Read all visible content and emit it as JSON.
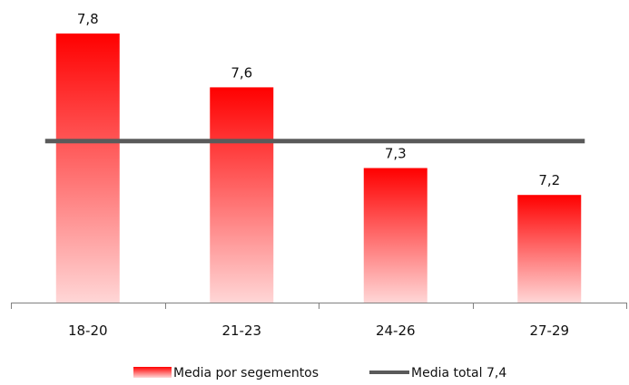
{
  "chart_data": {
    "type": "bar",
    "categories": [
      "18-20",
      "21-23",
      "24-26",
      "27-29"
    ],
    "series": [
      {
        "name": "Media por segementos",
        "values": [
          7.8,
          7.6,
          7.3,
          7.2
        ],
        "data_labels": [
          "7,8",
          "7,6",
          "7,3",
          "7,2"
        ]
      }
    ],
    "reference_line": {
      "name": "Media total 7,4",
      "value": 7.4
    },
    "ylim": [
      6.8,
      7.8
    ],
    "title": "",
    "xlabel": "",
    "ylabel": "",
    "grid": false,
    "legend_position": "bottom",
    "colors": {
      "bar_top": "#ff0000",
      "bar_bottom": "#ffd6d6",
      "reference_line": "#5a5a5a",
      "axis": "#808080"
    }
  }
}
